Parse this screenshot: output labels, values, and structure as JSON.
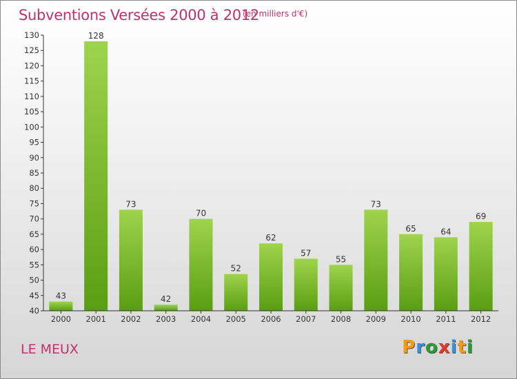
{
  "header": {
    "title": "Subventions Versées 2000 à 2012",
    "subtitle": "(en milliers d'€)"
  },
  "footer": {
    "place": "LE MEUX",
    "logo_text": "Proxiti",
    "logo_colors": [
      "#f39c12",
      "#3d8ed8",
      "#2a9a3a",
      "#e23b2e",
      "#3d8ed8",
      "#f39c12",
      "#2a9a3a"
    ]
  },
  "chart_data": {
    "type": "bar",
    "categories": [
      "2000",
      "2001",
      "2002",
      "2003",
      "2004",
      "2005",
      "2006",
      "2007",
      "2008",
      "2009",
      "2010",
      "2011",
      "2012"
    ],
    "values": [
      43,
      128,
      73,
      42,
      70,
      52,
      62,
      57,
      55,
      73,
      65,
      64,
      69
    ],
    "title": "Subventions Versées 2000 à 2012",
    "subtitle": "(en milliers d'€)",
    "ylim": [
      40,
      130
    ],
    "yticks": [
      40,
      45,
      50,
      55,
      60,
      65,
      70,
      75,
      80,
      85,
      90,
      95,
      100,
      105,
      110,
      115,
      120,
      125,
      130
    ],
    "grid": false,
    "legend": "none",
    "colors": {
      "bar_top": "#9ed44c",
      "bar_bottom": "#5a9e12",
      "axis": "#333333",
      "label": "#333333"
    }
  }
}
